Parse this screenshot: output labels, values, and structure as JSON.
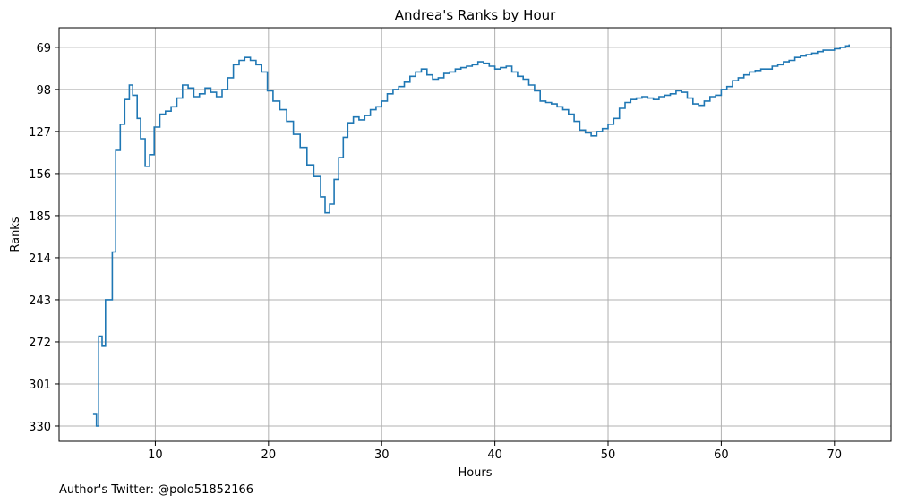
{
  "chart_data": {
    "type": "line",
    "drawstyle": "step",
    "title": "Andrea's Ranks by Hour",
    "xlabel": "Hours",
    "ylabel": "Ranks",
    "xlim": [
      1.5,
      75
    ],
    "ylim": [
      340.5,
      55.5
    ],
    "y_inverted": true,
    "grid": true,
    "xticks": [
      10,
      20,
      30,
      40,
      50,
      60,
      70
    ],
    "yticks": [
      69,
      98,
      127,
      156,
      185,
      214,
      243,
      272,
      301,
      330
    ],
    "series_color": "#1f77b4",
    "series": [
      {
        "x": [
          4.5,
          4.8,
          5.0,
          5.3,
          5.6,
          6.2,
          6.5,
          6.9,
          7.3,
          7.7,
          8.0,
          8.4,
          8.7,
          9.1,
          9.5,
          9.9,
          10.4,
          10.9,
          11.4,
          11.9,
          12.4,
          12.9,
          13.4,
          13.9,
          14.4,
          14.9,
          15.4,
          15.9,
          16.4,
          16.9,
          17.4,
          17.9,
          18.4,
          18.9,
          19.4,
          19.9,
          20.4,
          21.0,
          21.6,
          22.2,
          22.8,
          23.4,
          24.0,
          24.6,
          25.0,
          25.4,
          25.8,
          26.2,
          26.6,
          27.0,
          27.5,
          28.0,
          28.5,
          29.0,
          29.5,
          30.0,
          30.5,
          31.0,
          31.5,
          32.0,
          32.5,
          33.0,
          33.5,
          34.0,
          34.5,
          35.0,
          35.5,
          36.0,
          36.5,
          37.0,
          37.5,
          38.0,
          38.5,
          39.0,
          39.5,
          40.0,
          40.5,
          41.0,
          41.5,
          42.0,
          42.5,
          43.0,
          43.5,
          44.0,
          44.5,
          45.0,
          45.5,
          46.0,
          46.5,
          47.0,
          47.5,
          48.0,
          48.5,
          49.0,
          49.5,
          50.0,
          50.5,
          51.0,
          51.5,
          52.0,
          52.5,
          53.0,
          53.5,
          54.0,
          54.5,
          55.0,
          55.5,
          56.0,
          56.5,
          57.0,
          57.5,
          58.0,
          58.5,
          59.0,
          59.5,
          60.0,
          60.5,
          61.0,
          61.5,
          62.0,
          62.5,
          63.0,
          63.5,
          64.0,
          64.5,
          65.0,
          65.5,
          66.0,
          66.5,
          67.0,
          67.5,
          68.0,
          68.5,
          69.0,
          69.5,
          70.0,
          70.5,
          71.0,
          71.3
        ],
        "y": [
          322,
          330,
          268,
          275,
          243,
          210,
          140,
          122,
          105,
          95,
          102,
          118,
          132,
          151,
          143,
          124,
          115,
          113,
          110,
          104,
          95,
          97,
          103,
          101,
          97,
          100,
          103,
          98,
          90,
          81,
          78,
          76,
          78,
          81,
          86,
          99,
          106,
          112,
          120,
          129,
          138,
          150,
          158,
          172,
          183,
          177,
          160,
          145,
          131,
          121,
          117,
          119,
          116,
          112,
          110,
          106,
          101,
          98,
          96,
          93,
          89,
          86,
          84,
          88,
          91,
          90,
          87,
          86,
          84,
          83,
          82,
          81,
          79,
          80,
          82,
          84,
          83,
          82,
          86,
          89,
          91,
          95,
          99,
          106,
          107,
          108,
          110,
          112,
          115,
          120,
          126,
          128,
          130,
          127,
          125,
          122,
          118,
          111,
          107,
          105,
          104,
          103,
          104,
          105,
          103,
          102,
          101,
          99,
          100,
          104,
          108,
          109,
          106,
          103,
          102,
          98,
          96,
          92,
          90,
          88,
          86,
          85,
          84,
          84,
          82,
          81,
          79,
          78,
          76,
          75,
          74,
          73,
          72,
          71,
          71,
          70,
          69,
          68,
          67
        ]
      }
    ]
  },
  "footer": {
    "author": "Author's Twitter: @polo51852166"
  }
}
